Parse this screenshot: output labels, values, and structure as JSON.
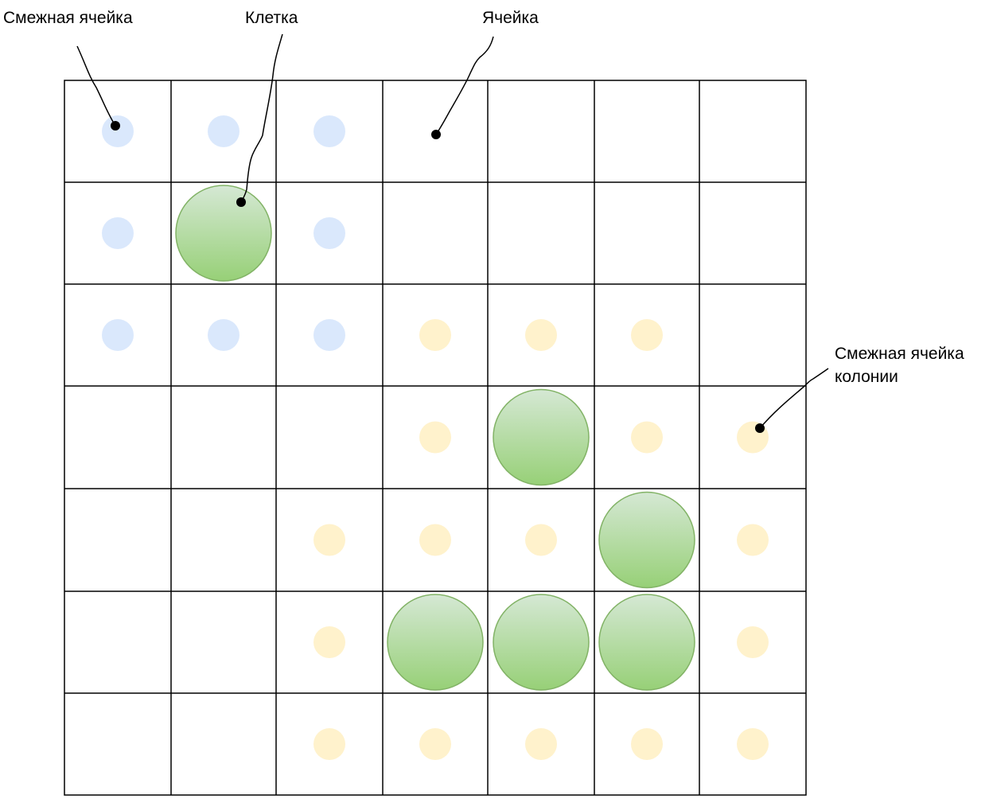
{
  "labels": {
    "adjacent_cell": "Смежная ячейка",
    "cell_organism": "Клетка",
    "grid_cell": "Ячейка",
    "colony_adjacent_line1": "Смежная ячейка",
    "colony_adjacent_line2": "колонии"
  },
  "grid": {
    "rows": 7,
    "cols": 7
  },
  "live_cells": [
    {
      "row": 1,
      "col": 1
    },
    {
      "row": 3,
      "col": 4
    },
    {
      "row": 4,
      "col": 5
    },
    {
      "row": 5,
      "col": 3
    },
    {
      "row": 5,
      "col": 4
    },
    {
      "row": 5,
      "col": 5
    }
  ],
  "neighbor_markers": [
    {
      "row": 0,
      "col": 0,
      "kind": "blue"
    },
    {
      "row": 0,
      "col": 1,
      "kind": "blue"
    },
    {
      "row": 0,
      "col": 2,
      "kind": "blue"
    },
    {
      "row": 1,
      "col": 0,
      "kind": "blue"
    },
    {
      "row": 1,
      "col": 2,
      "kind": "blue"
    },
    {
      "row": 2,
      "col": 0,
      "kind": "blue"
    },
    {
      "row": 2,
      "col": 1,
      "kind": "blue"
    },
    {
      "row": 2,
      "col": 2,
      "kind": "blue"
    },
    {
      "row": 2,
      "col": 3,
      "kind": "yellow"
    },
    {
      "row": 2,
      "col": 4,
      "kind": "yellow"
    },
    {
      "row": 2,
      "col": 5,
      "kind": "yellow"
    },
    {
      "row": 3,
      "col": 3,
      "kind": "yellow"
    },
    {
      "row": 3,
      "col": 5,
      "kind": "yellow"
    },
    {
      "row": 3,
      "col": 6,
      "kind": "yellow"
    },
    {
      "row": 4,
      "col": 2,
      "kind": "yellow"
    },
    {
      "row": 4,
      "col": 3,
      "kind": "yellow"
    },
    {
      "row": 4,
      "col": 4,
      "kind": "yellow"
    },
    {
      "row": 4,
      "col": 6,
      "kind": "yellow"
    },
    {
      "row": 5,
      "col": 2,
      "kind": "yellow"
    },
    {
      "row": 5,
      "col": 6,
      "kind": "yellow"
    },
    {
      "row": 6,
      "col": 2,
      "kind": "yellow"
    },
    {
      "row": 6,
      "col": 3,
      "kind": "yellow"
    },
    {
      "row": 6,
      "col": 4,
      "kind": "yellow"
    },
    {
      "row": 6,
      "col": 5,
      "kind": "yellow"
    },
    {
      "row": 6,
      "col": 6,
      "kind": "yellow"
    }
  ],
  "colors": {
    "grid_line": "#000000",
    "cell_fill_top": "#d5e8d4",
    "cell_fill_bottom": "#97d077",
    "cell_stroke": "#82b366",
    "neighbor_blue": "#dae8fc",
    "neighbor_yellow": "#fff2cc",
    "leader": "#000000"
  }
}
